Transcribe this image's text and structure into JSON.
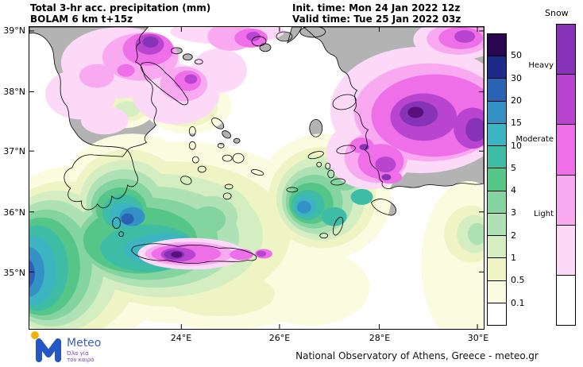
{
  "header": {
    "title_line1": "Total 3-hr acc. precipitation (mm)",
    "title_line2": "BOLAM 6 km t+15z",
    "init_time": "Init. time: Mon 24 Jan 2022 12z",
    "valid_time": "Valid time: Tue 25 Jan 2022 03z"
  },
  "map": {
    "lat_labels": [
      "39°N",
      "38°N",
      "37°N",
      "36°N",
      "35°N"
    ],
    "lon_labels": [
      "24°E",
      "26°E",
      "28°E",
      "30°E"
    ]
  },
  "colorbar": {
    "values": [
      "50",
      "30",
      "20",
      "15",
      "10",
      "5",
      "4",
      "3",
      "2",
      "1",
      "0.5",
      "0.1"
    ],
    "colors": [
      "#2b0650",
      "#1e2a8a",
      "#2a62b4",
      "#3391c6",
      "#3db4c2",
      "#3fbca6",
      "#55c688",
      "#83d49e",
      "#aee2b4",
      "#d4eec2",
      "#eff4c4",
      "#fbfbe0",
      "#ffffff"
    ]
  },
  "snowbar": {
    "title": "Snow",
    "labels": [
      "Heavy",
      "Moderate",
      "Light"
    ],
    "colors": [
      "#8633b8",
      "#b944cf",
      "#ee6fe8",
      "#f9a9f0",
      "#fdd9f8",
      "#ffffff"
    ]
  },
  "footer": {
    "credit": "National Observatory of Athens, Greece - meteo.gr"
  },
  "logo": {
    "brand": "Meteo",
    "tagline_line1": "Όλα για",
    "tagline_line2": "τον καιρό"
  },
  "palette": {
    "sea": "#ffffff",
    "land": "#b3b3b3",
    "coast": "#000000"
  }
}
